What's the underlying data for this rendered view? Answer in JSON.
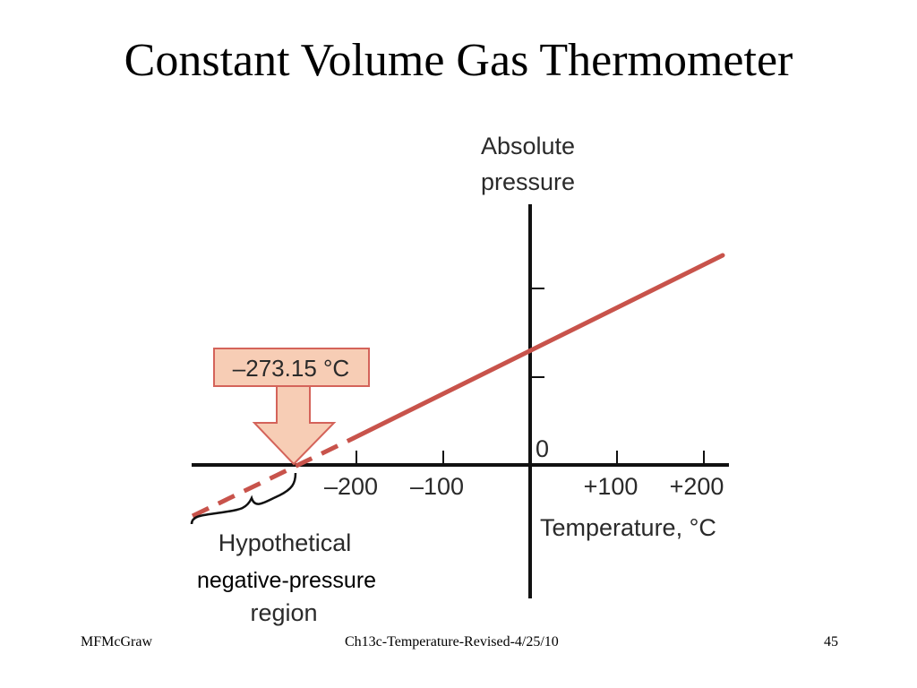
{
  "slide": {
    "title": "Constant Volume Gas Thermometer"
  },
  "figure": {
    "y_axis_label_line1": "Absolute",
    "y_axis_label_line2": "pressure",
    "x_axis_label": "Temperature, °C",
    "origin_label": "0",
    "tick_labels": [
      "–200",
      "–100",
      "+100",
      "+200"
    ],
    "callout": "–273.15 °C",
    "region_label_line1": "Hypothetical",
    "region_label_line2": "negative-pressure",
    "region_label_line3": "region",
    "line_color": "#c8534b",
    "callout_fill": "#f7cdb5",
    "callout_stroke": "#d4635a"
  },
  "footer": {
    "author": "MFMcGraw",
    "file": "Ch13c-Temperature-Revised-4/25/10",
    "page": "45"
  }
}
